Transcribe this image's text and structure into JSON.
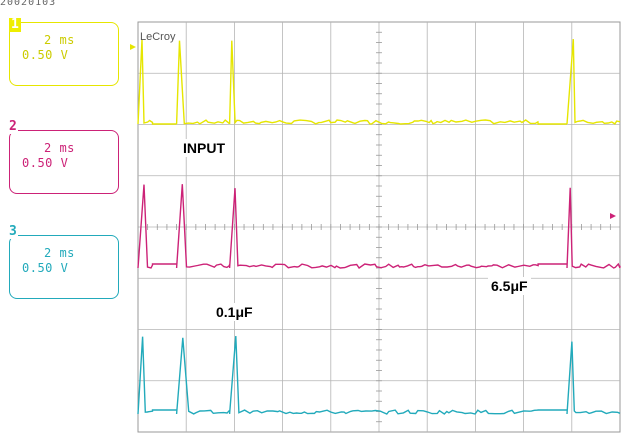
{
  "scope": {
    "brand": "LeCroy",
    "header_fragment": "20020103"
  },
  "channels": [
    {
      "number": "1",
      "time_div": "2 ms",
      "volt_div": "0.50 V",
      "color": "#e6e600"
    },
    {
      "number": "2",
      "time_div": "2 ms",
      "volt_div": "0.50 V",
      "color": "#cc2277"
    },
    {
      "number": "3",
      "time_div": "2 ms",
      "volt_div": "0.50 V",
      "color": "#22aabb"
    }
  ],
  "annotations": {
    "input": "INPUT",
    "cap_small": "0.1μF",
    "cap_large": "6.5μF"
  },
  "chart_data": {
    "type": "line",
    "description_units": "time in ms, amplitude in V",
    "xlim": [
      0,
      20
    ],
    "grid": true,
    "series": [
      {
        "name": "",
        "color": "#e6e600",
        "segments": [
          [
            0,
            0.6
          ],
          [
            1.6,
            3.8
          ],
          [
            3.8,
            16.6
          ],
          [
            17.8,
            20
          ]
        ],
        "low": 0.0,
        "high": 1.1
      },
      {
        "name": "",
        "color": "#cc2277",
        "segments": [
          [
            0,
            0.6
          ],
          [
            1.6,
            3.8
          ],
          [
            3.8,
            16.6
          ],
          [
            17.8,
            20
          ]
        ],
        "low": 0.0,
        "high": 1.1
      },
      {
        "name": "",
        "color": "#22aabb",
        "segments": [
          [
            0,
            0.6
          ],
          [
            1.6,
            3.8
          ],
          [
            3.8,
            16.6
          ],
          [
            17.8,
            20
          ]
        ],
        "low": 0.0,
        "high": 1.1
      }
    ]
  }
}
